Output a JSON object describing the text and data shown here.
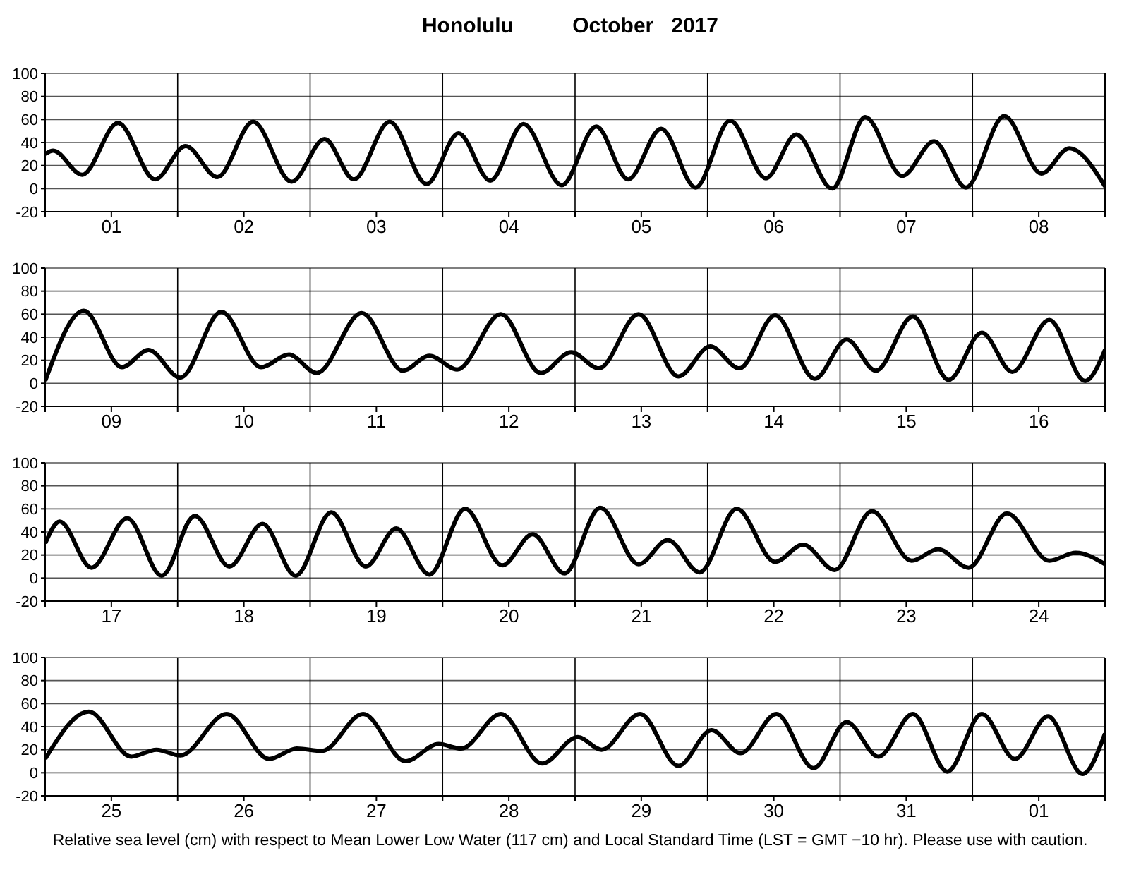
{
  "chart_data": [
    {
      "type": "line",
      "title": "Honolulu          October   2017",
      "xlim": [
        "2017-10-01T00:00",
        "2017-10-09T00:00"
      ],
      "ylim": [
        -20,
        100
      ],
      "yticks": [
        -20,
        0,
        20,
        40,
        60,
        80,
        100
      ],
      "grid": "y",
      "line_style": "solid",
      "xticks": [
        {
          "value": "2017-10-01T00:00",
          "label": null
        },
        {
          "value": "2017-10-01T12:00",
          "label": "01"
        },
        {
          "value": "2017-10-02T00:00",
          "label": null
        },
        {
          "value": "2017-10-02T12:00",
          "label": "02"
        },
        {
          "value": "2017-10-03T00:00",
          "label": null
        },
        {
          "value": "2017-10-03T12:00",
          "label": "03"
        },
        {
          "value": "2017-10-04T00:00",
          "label": null
        },
        {
          "value": "2017-10-04T12:00",
          "label": "04"
        },
        {
          "value": "2017-10-05T00:00",
          "label": null
        },
        {
          "value": "2017-10-05T12:00",
          "label": "05"
        },
        {
          "value": "2017-10-06T00:00",
          "label": null
        },
        {
          "value": "2017-10-06T12:00",
          "label": "06"
        },
        {
          "value": "2017-10-07T00:00",
          "label": null
        },
        {
          "value": "2017-10-07T12:00",
          "label": "07"
        },
        {
          "value": "2017-10-08T00:00",
          "label": null
        },
        {
          "value": "2017-10-08T12:00",
          "label": "08"
        },
        {
          "value": "2017-10-09T00:00",
          "label": null
        }
      ],
      "ref_lines": [
        {
          "axis": "x",
          "value": "2017-10-02T00:00",
          "color": "#000000"
        },
        {
          "axis": "x",
          "value": "2017-10-03T00:00",
          "color": "#000000"
        },
        {
          "axis": "x",
          "value": "2017-10-04T00:00",
          "color": "#000000"
        },
        {
          "axis": "x",
          "value": "2017-10-05T00:00",
          "color": "#000000"
        },
        {
          "axis": "x",
          "value": "2017-10-06T00:00",
          "color": "#000000"
        },
        {
          "axis": "x",
          "value": "2017-10-07T00:00",
          "color": "#000000"
        },
        {
          "axis": "x",
          "value": "2017-10-08T00:00",
          "color": "#000000"
        }
      ],
      "series": [
        {
          "color": "#000000",
          "x": [
            "2017-10-01T00:00",
            "2017-10-01T01:26",
            "2017-10-01T06:43",
            "2017-10-01T13:12",
            "2017-10-01T19:55",
            "2017-10-02T01:26",
            "2017-10-02T07:12",
            "2017-10-02T13:41",
            "2017-10-02T20:38",
            "2017-10-03T02:38",
            "2017-10-03T07:55",
            "2017-10-03T14:24",
            "2017-10-03T21:07",
            "2017-10-04T02:53",
            "2017-10-04T08:38",
            "2017-10-04T14:38",
            "2017-10-04T21:36",
            "2017-10-05T03:50",
            "2017-10-05T09:36",
            "2017-10-05T15:36",
            "2017-10-05T21:50",
            "2017-10-06T04:05",
            "2017-10-06T10:34",
            "2017-10-06T16:05",
            "2017-10-06T22:34",
            "2017-10-07T04:34",
            "2017-10-07T11:17",
            "2017-10-07T17:02",
            "2017-10-07T22:48",
            "2017-10-08T05:46",
            "2017-10-08T12:29",
            "2017-10-08T17:31",
            "2017-10-09T00:00"
          ],
          "values": [
            30,
            33,
            12,
            57,
            8,
            37,
            10,
            58,
            6,
            43,
            8,
            58,
            4,
            48,
            7,
            56,
            3,
            54,
            8,
            52,
            1,
            59,
            9,
            47,
            0,
            62,
            11,
            41,
            1,
            63,
            13,
            35,
            2
          ]
        }
      ]
    },
    {
      "type": "line",
      "xlim": [
        "2017-10-09T00:00",
        "2017-10-17T00:00"
      ],
      "ylim": [
        -20,
        100
      ],
      "yticks": [
        -20,
        0,
        20,
        40,
        60,
        80,
        100
      ],
      "grid": "y",
      "line_style": "solid",
      "xticks": [
        {
          "value": "2017-10-09T00:00",
          "label": null
        },
        {
          "value": "2017-10-09T12:00",
          "label": "09"
        },
        {
          "value": "2017-10-10T00:00",
          "label": null
        },
        {
          "value": "2017-10-10T12:00",
          "label": "10"
        },
        {
          "value": "2017-10-11T00:00",
          "label": null
        },
        {
          "value": "2017-10-11T12:00",
          "label": "11"
        },
        {
          "value": "2017-10-12T00:00",
          "label": null
        },
        {
          "value": "2017-10-12T12:00",
          "label": "12"
        },
        {
          "value": "2017-10-13T00:00",
          "label": null
        },
        {
          "value": "2017-10-13T12:00",
          "label": "13"
        },
        {
          "value": "2017-10-14T00:00",
          "label": null
        },
        {
          "value": "2017-10-14T12:00",
          "label": "14"
        },
        {
          "value": "2017-10-15T00:00",
          "label": null
        },
        {
          "value": "2017-10-15T12:00",
          "label": "15"
        },
        {
          "value": "2017-10-16T00:00",
          "label": null
        },
        {
          "value": "2017-10-16T12:00",
          "label": "16"
        },
        {
          "value": "2017-10-17T00:00",
          "label": null
        }
      ],
      "ref_lines": [
        {
          "axis": "x",
          "value": "2017-10-10T00:00",
          "color": "#000000"
        },
        {
          "axis": "x",
          "value": "2017-10-11T00:00",
          "color": "#000000"
        },
        {
          "axis": "x",
          "value": "2017-10-12T00:00",
          "color": "#000000"
        },
        {
          "axis": "x",
          "value": "2017-10-13T00:00",
          "color": "#000000"
        },
        {
          "axis": "x",
          "value": "2017-10-14T00:00",
          "color": "#000000"
        },
        {
          "axis": "x",
          "value": "2017-10-15T00:00",
          "color": "#000000"
        },
        {
          "axis": "x",
          "value": "2017-10-16T00:00",
          "color": "#000000"
        }
      ],
      "series": [
        {
          "color": "#000000",
          "x": [
            "2017-10-09T00:00",
            "2017-10-09T07:00",
            "2017-10-09T13:55",
            "2017-10-09T18:43",
            "2017-10-10T00:29",
            "2017-10-10T07:55",
            "2017-10-10T15:07",
            "2017-10-10T20:10",
            "2017-10-11T01:12",
            "2017-10-11T09:22",
            "2017-10-11T16:48",
            "2017-10-11T21:36",
            "2017-10-12T02:38",
            "2017-10-12T10:34",
            "2017-10-12T17:46",
            "2017-10-12T23:17",
            "2017-10-13T04:19",
            "2017-10-13T11:31",
            "2017-10-13T18:43",
            "2017-10-14T00:29",
            "2017-10-14T05:46",
            "2017-10-14T12:14",
            "2017-10-14T19:26",
            "2017-10-15T01:12",
            "2017-10-15T06:29",
            "2017-10-15T13:12",
            "2017-10-15T19:41",
            "2017-10-16T01:41",
            "2017-10-16T07:12",
            "2017-10-16T13:55",
            "2017-10-16T20:24",
            "2017-10-17T00:00"
          ],
          "values": [
            2,
            63,
            14,
            29,
            5,
            62,
            14,
            25,
            9,
            61,
            11,
            24,
            12,
            60,
            9,
            27,
            13,
            60,
            6,
            32,
            13,
            59,
            4,
            38,
            11,
            58,
            3,
            44,
            10,
            55,
            2,
            29
          ]
        }
      ]
    },
    {
      "type": "line",
      "xlim": [
        "2017-10-17T00:00",
        "2017-10-25T00:00"
      ],
      "ylim": [
        -20,
        100
      ],
      "yticks": [
        -20,
        0,
        20,
        40,
        60,
        80,
        100
      ],
      "grid": "y",
      "line_style": "solid",
      "xticks": [
        {
          "value": "2017-10-17T00:00",
          "label": null
        },
        {
          "value": "2017-10-17T12:00",
          "label": "17"
        },
        {
          "value": "2017-10-18T00:00",
          "label": null
        },
        {
          "value": "2017-10-18T12:00",
          "label": "18"
        },
        {
          "value": "2017-10-19T00:00",
          "label": null
        },
        {
          "value": "2017-10-19T12:00",
          "label": "19"
        },
        {
          "value": "2017-10-20T00:00",
          "label": null
        },
        {
          "value": "2017-10-20T12:00",
          "label": "20"
        },
        {
          "value": "2017-10-21T00:00",
          "label": null
        },
        {
          "value": "2017-10-21T12:00",
          "label": "21"
        },
        {
          "value": "2017-10-22T00:00",
          "label": null
        },
        {
          "value": "2017-10-22T12:00",
          "label": "22"
        },
        {
          "value": "2017-10-23T00:00",
          "label": null
        },
        {
          "value": "2017-10-23T12:00",
          "label": "23"
        },
        {
          "value": "2017-10-24T00:00",
          "label": null
        },
        {
          "value": "2017-10-24T12:00",
          "label": "24"
        },
        {
          "value": "2017-10-25T00:00",
          "label": null
        }
      ],
      "ref_lines": [
        {
          "axis": "x",
          "value": "2017-10-18T00:00",
          "color": "#000000"
        },
        {
          "axis": "x",
          "value": "2017-10-19T00:00",
          "color": "#000000"
        },
        {
          "axis": "x",
          "value": "2017-10-20T00:00",
          "color": "#000000"
        },
        {
          "axis": "x",
          "value": "2017-10-21T00:00",
          "color": "#000000"
        },
        {
          "axis": "x",
          "value": "2017-10-22T00:00",
          "color": "#000000"
        },
        {
          "axis": "x",
          "value": "2017-10-23T00:00",
          "color": "#000000"
        },
        {
          "axis": "x",
          "value": "2017-10-24T00:00",
          "color": "#000000"
        }
      ],
      "series": [
        {
          "color": "#000000",
          "x": [
            "2017-10-17T00:00",
            "2017-10-17T02:38",
            "2017-10-17T08:24",
            "2017-10-17T14:53",
            "2017-10-17T21:07",
            "2017-10-18T03:07",
            "2017-10-18T09:22",
            "2017-10-18T15:22",
            "2017-10-18T21:22",
            "2017-10-19T03:50",
            "2017-10-19T10:05",
            "2017-10-19T15:36",
            "2017-10-19T21:36",
            "2017-10-20T04:05",
            "2017-10-20T10:48",
            "2017-10-20T16:19",
            "2017-10-20T22:05",
            "2017-10-21T04:34",
            "2017-10-21T11:31",
            "2017-10-21T16:48",
            "2017-10-21T22:34",
            "2017-10-22T05:17",
            "2017-10-22T12:14",
            "2017-10-22T17:17",
            "2017-10-22T23:02",
            "2017-10-23T05:46",
            "2017-10-23T12:58",
            "2017-10-23T17:46",
            "2017-10-23T23:17",
            "2017-10-24T06:14",
            "2017-10-24T13:55",
            "2017-10-24T18:43",
            "2017-10-25T00:00"
          ],
          "values": [
            30,
            49,
            9,
            52,
            2,
            54,
            10,
            47,
            2,
            57,
            10,
            43,
            3,
            60,
            11,
            38,
            4,
            61,
            12,
            33,
            5,
            60,
            14,
            29,
            7,
            58,
            15,
            25,
            9,
            56,
            15,
            22,
            12
          ]
        }
      ]
    },
    {
      "type": "line",
      "xlim": [
        "2017-10-25T00:00",
        "2017-11-02T00:00"
      ],
      "ylim": [
        -20,
        100
      ],
      "yticks": [
        -20,
        0,
        20,
        40,
        60,
        80,
        100
      ],
      "grid": "y",
      "line_style": "solid",
      "xticks": [
        {
          "value": "2017-10-25T00:00",
          "label": null
        },
        {
          "value": "2017-10-25T12:00",
          "label": "25"
        },
        {
          "value": "2017-10-26T00:00",
          "label": null
        },
        {
          "value": "2017-10-26T12:00",
          "label": "26"
        },
        {
          "value": "2017-10-27T00:00",
          "label": null
        },
        {
          "value": "2017-10-27T12:00",
          "label": "27"
        },
        {
          "value": "2017-10-28T00:00",
          "label": null
        },
        {
          "value": "2017-10-28T12:00",
          "label": "28"
        },
        {
          "value": "2017-10-29T00:00",
          "label": null
        },
        {
          "value": "2017-10-29T12:00",
          "label": "29"
        },
        {
          "value": "2017-10-30T00:00",
          "label": null
        },
        {
          "value": "2017-10-30T12:00",
          "label": "30"
        },
        {
          "value": "2017-10-31T00:00",
          "label": null
        },
        {
          "value": "2017-10-31T12:00",
          "label": "31"
        },
        {
          "value": "2017-11-01T00:00",
          "label": null
        },
        {
          "value": "2017-11-01T12:00",
          "label": "01"
        },
        {
          "value": "2017-11-02T00:00",
          "label": null
        }
      ],
      "ref_lines": [
        {
          "axis": "x",
          "value": "2017-10-26T00:00",
          "color": "#000000"
        },
        {
          "axis": "x",
          "value": "2017-10-27T00:00",
          "color": "#000000"
        },
        {
          "axis": "x",
          "value": "2017-10-28T00:00",
          "color": "#000000"
        },
        {
          "axis": "x",
          "value": "2017-10-29T00:00",
          "color": "#000000"
        },
        {
          "axis": "x",
          "value": "2017-10-30T00:00",
          "color": "#000000"
        },
        {
          "axis": "x",
          "value": "2017-10-31T00:00",
          "color": "#000000"
        },
        {
          "axis": "x",
          "value": "2017-11-01T00:00",
          "color": "#000000"
        }
      ],
      "series": [
        {
          "color": "#000000",
          "x": [
            "2017-10-25T00:00",
            "2017-10-25T07:55",
            "2017-10-25T15:36",
            "2017-10-25T20:10",
            "2017-10-26T00:29",
            "2017-10-26T08:53",
            "2017-10-26T16:34",
            "2017-10-26T21:36",
            "2017-10-27T02:10",
            "2017-10-27T09:36",
            "2017-10-27T17:17",
            "2017-10-27T23:17",
            "2017-10-28T03:22",
            "2017-10-28T10:34",
            "2017-10-28T18:00",
            "2017-10-29T00:29",
            "2017-10-29T04:48",
            "2017-10-29T11:46",
            "2017-10-29T18:43",
            "2017-10-30T00:43",
            "2017-10-30T06:00",
            "2017-10-30T12:29",
            "2017-10-30T19:12",
            "2017-10-31T01:12",
            "2017-10-31T06:58",
            "2017-10-31T13:12",
            "2017-10-31T19:26",
            "2017-11-01T01:41",
            "2017-11-01T07:41",
            "2017-11-01T13:41",
            "2017-11-01T19:55",
            "2017-11-02T00:00"
          ],
          "values": [
            12,
            53,
            14,
            20,
            15,
            51,
            12,
            21,
            19,
            51,
            10,
            25,
            21,
            51,
            8,
            31,
            20,
            51,
            6,
            37,
            17,
            51,
            4,
            44,
            14,
            51,
            1,
            51,
            12,
            49,
            -1,
            34
          ]
        }
      ],
      "annotations": [
        "Relative sea level (cm) with respect to Mean Lower Low Water (117 cm) and Local Standard Time (LST = GMT −10 hr). Please use with caution."
      ]
    }
  ]
}
